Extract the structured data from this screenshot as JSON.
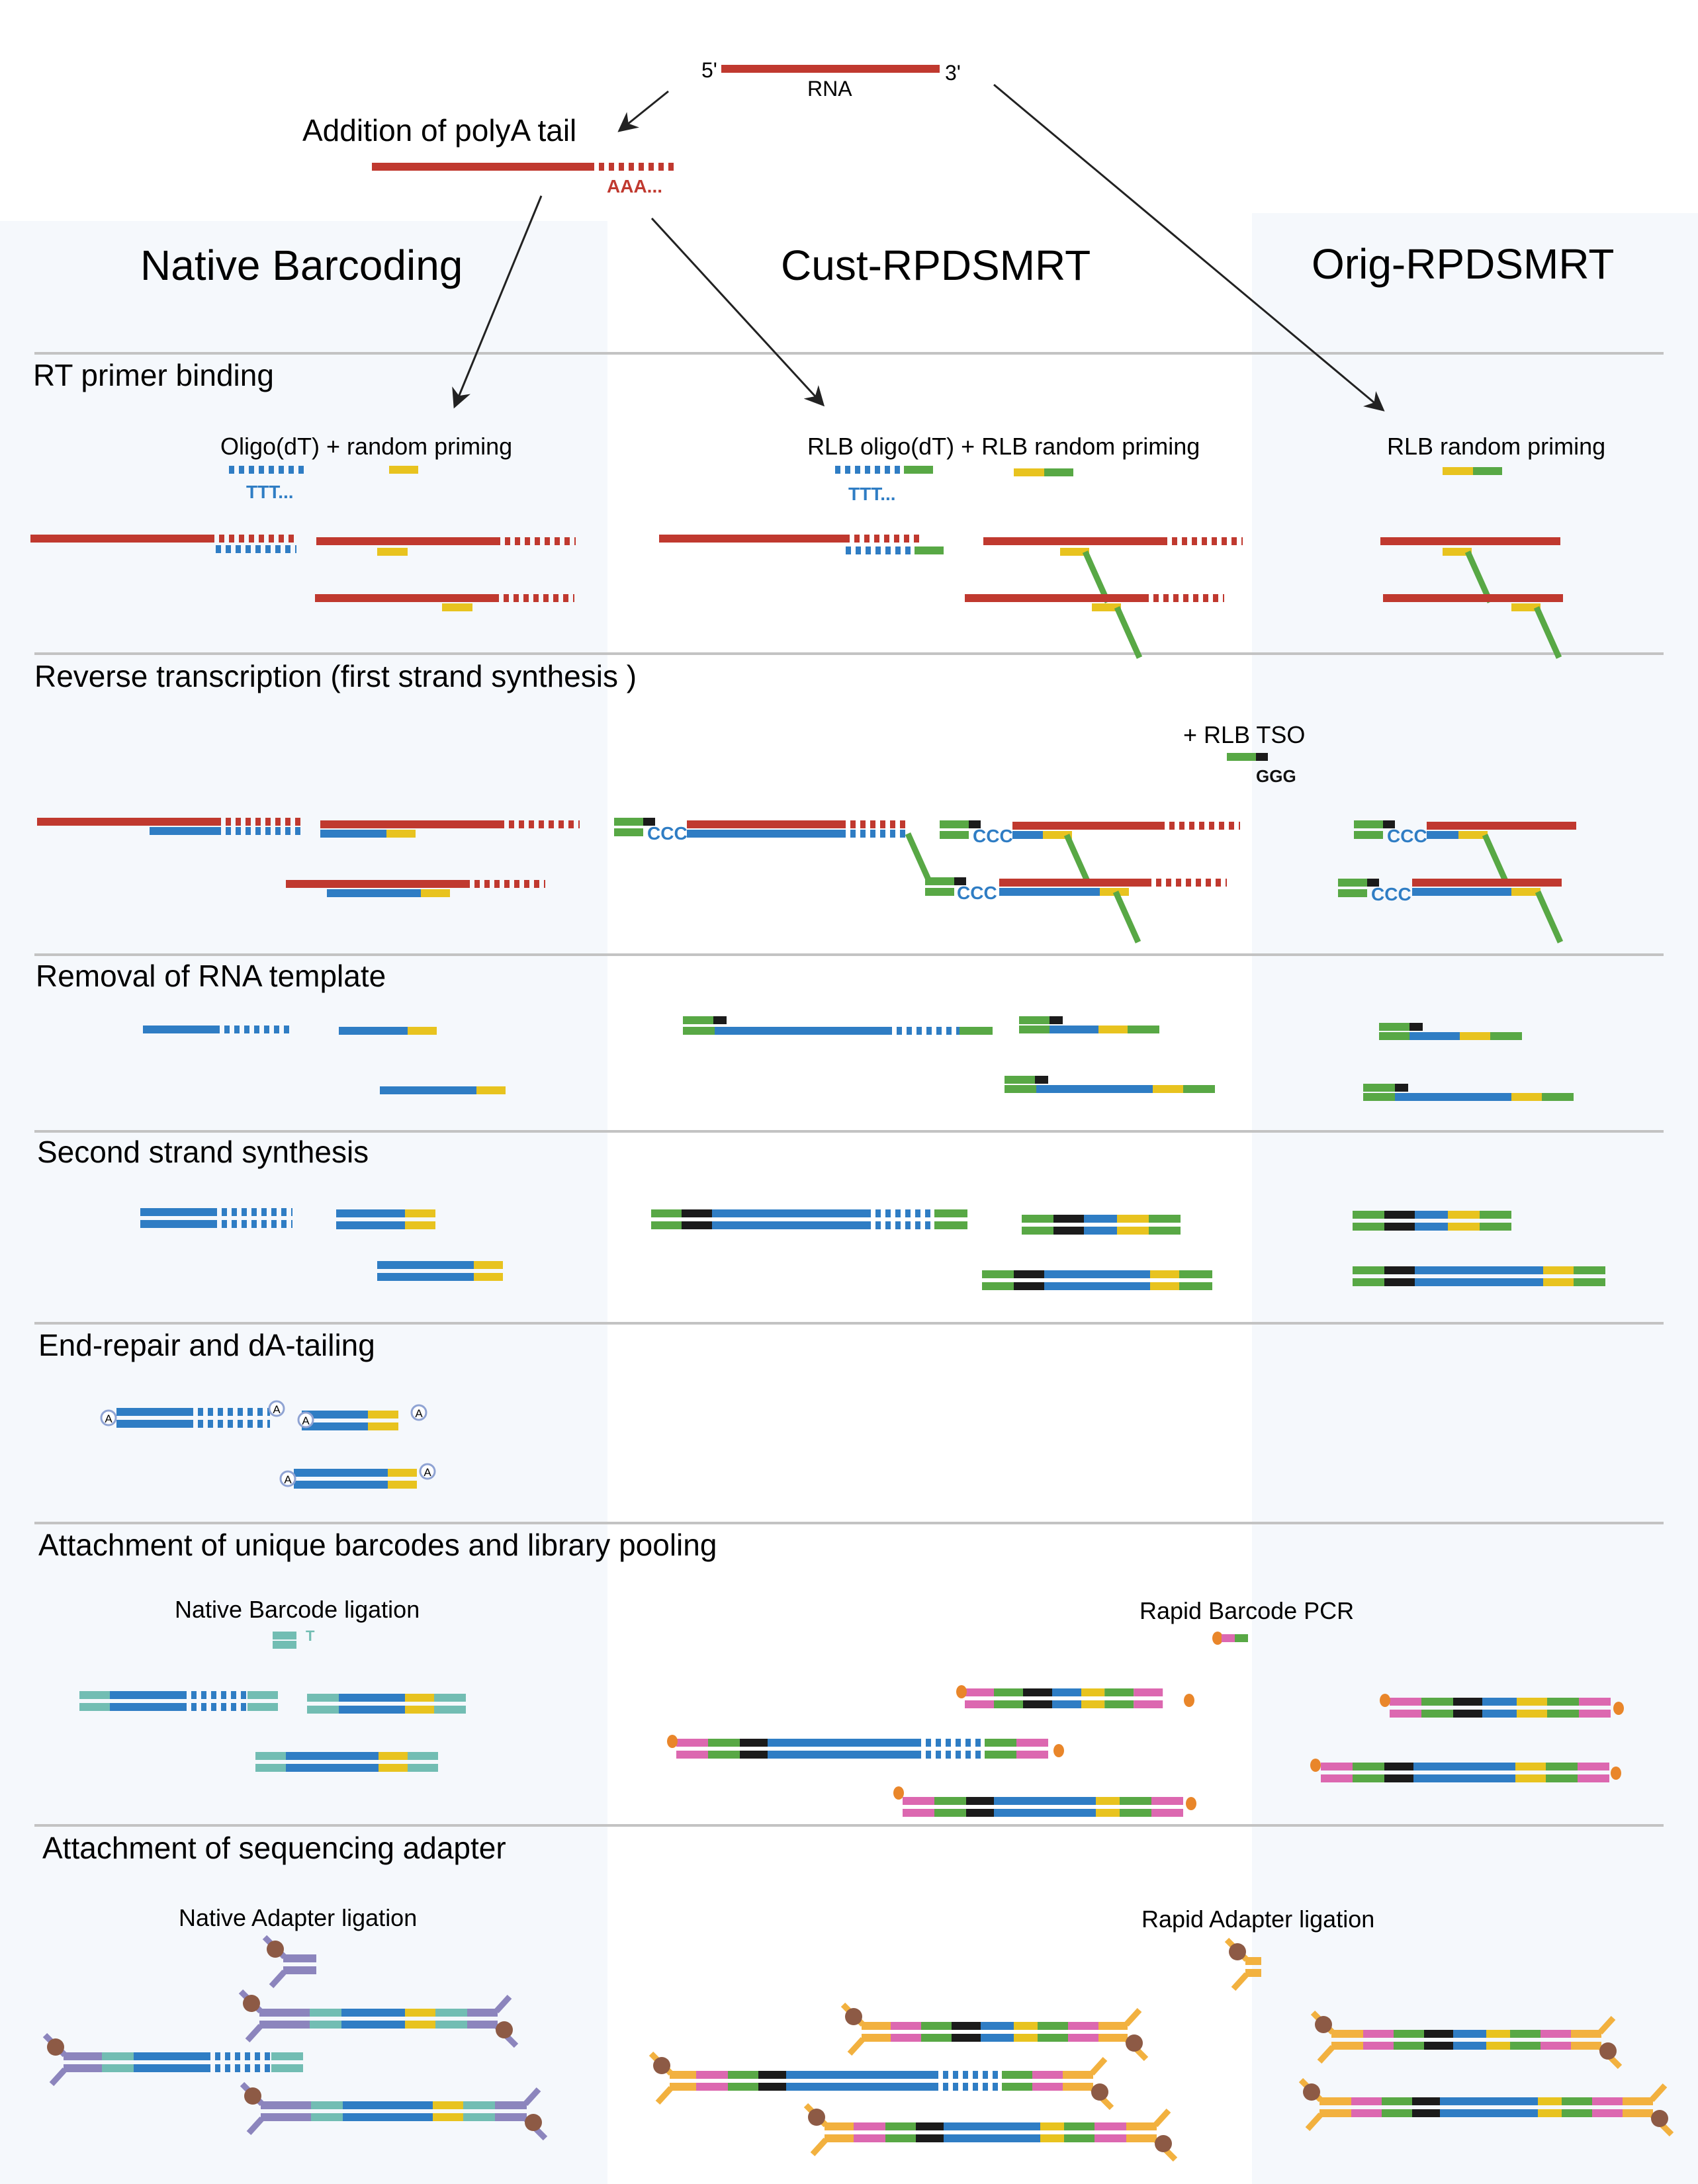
{
  "colors": {
    "rna": "#c0392f",
    "cdna": "#2f7dc4",
    "random_primer": "#e8c31f",
    "rlb": "#58a845",
    "tso_tag": "#1b1b1b",
    "native_barcode": "#72bdb3",
    "rapid_barcode": "#dc68b0",
    "native_adapter": "#8c85bd",
    "rapid_adapter": "#f2b13f",
    "motor_protein": "#8d5a45",
    "biotin_dot": "#e9862a",
    "divider": "#c3c3c3",
    "panel_bg": "#f5f8fc",
    "a_tail_ring": "#8fa3d3"
  },
  "top": {
    "five_prime": "5'",
    "three_prime": "3'",
    "rna_label": "RNA",
    "polya_label": "Addition of polyA tail",
    "polya_seq": "AAA..."
  },
  "columns": [
    {
      "title": "Native Barcoding"
    },
    {
      "title": "Cust-RPDSMRT"
    },
    {
      "title": "Orig-RPDSMRT"
    }
  ],
  "steps": [
    {
      "title": "RT primer binding"
    },
    {
      "title": "Reverse transcription (first strand synthesis )"
    },
    {
      "title": "Removal of RNA template"
    },
    {
      "title": "Second strand synthesis"
    },
    {
      "title": "End-repair and dA-tailing"
    },
    {
      "title": "Attachment of unique barcodes and library pooling"
    },
    {
      "title": "Attachment of sequencing adapter"
    }
  ],
  "labels": {
    "native_primers": "Oligo(dT) + random priming",
    "cust_primers": "RLB oligo(dT) + RLB random priming",
    "orig_primers": "RLB random priming",
    "ttt": "TTT...",
    "tso": "+ RLB TSO",
    "ggg": "GGG",
    "ccc": "CCC",
    "a_base": "A",
    "t_base": "T",
    "native_barcode_ligation": "Native Barcode ligation",
    "rapid_barcode_pcr": "Rapid Barcode PCR",
    "native_adapter_ligation": "Native Adapter ligation",
    "rapid_adapter_ligation": "Rapid Adapter ligation"
  }
}
